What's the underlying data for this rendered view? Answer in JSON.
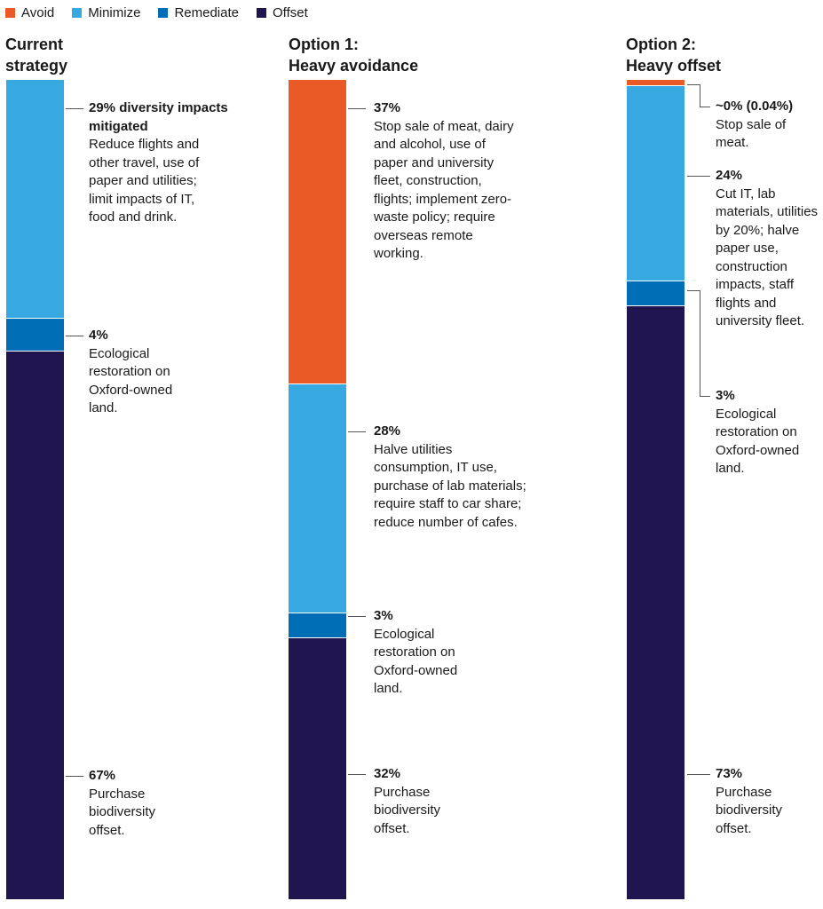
{
  "legend": [
    {
      "name": "Avoid",
      "color": "#ea5a27"
    },
    {
      "name": "Minimize",
      "color": "#38a8e0"
    },
    {
      "name": "Remediate",
      "color": "#006eb7"
    },
    {
      "name": "Offset",
      "color": "#20154f"
    }
  ],
  "chart_data": {
    "type": "bar",
    "stacked": true,
    "orientation": "vertical",
    "unit": "% of biodiversity impact",
    "categories": [
      "Current strategy",
      "Option 1: Heavy avoidance",
      "Option 2: Heavy offset"
    ],
    "series": [
      {
        "name": "Avoid",
        "color": "#ea5a27",
        "values": [
          0,
          37,
          0.04
        ]
      },
      {
        "name": "Minimize",
        "color": "#38a8e0",
        "values": [
          29,
          28,
          24
        ]
      },
      {
        "name": "Remediate",
        "color": "#006eb7",
        "values": [
          4,
          3,
          3
        ]
      },
      {
        "name": "Offset",
        "color": "#20154f",
        "values": [
          67,
          32,
          73
        ]
      }
    ],
    "columns": [
      {
        "title_line1": "Current",
        "title_line2": "strategy",
        "annotations": [
          {
            "series": "Minimize",
            "pct": "29% diversity impacts mitigated",
            "text": "Reduce flights and other travel, use of paper and utilities; limit impacts of IT, food and drink."
          },
          {
            "series": "Remediate",
            "pct": "4%",
            "text": "Ecological restoration on Oxford-owned land."
          },
          {
            "series": "Offset",
            "pct": "67%",
            "text": "Purchase biodiversity offset."
          }
        ]
      },
      {
        "title_line1": "Option 1:",
        "title_line2": "Heavy avoidance",
        "annotations": [
          {
            "series": "Avoid",
            "pct": "37%",
            "text": "Stop sale of meat, dairy and alcohol, use of paper and university fleet, construction, flights; implement zero-waste policy; require overseas remote working."
          },
          {
            "series": "Minimize",
            "pct": "28%",
            "text": "Halve utilities consumption, IT use, purchase of lab materials; require staff to car share; reduce number of cafes."
          },
          {
            "series": "Remediate",
            "pct": "3%",
            "text": "Ecological restoration on Oxford-owned land."
          },
          {
            "series": "Offset",
            "pct": "32%",
            "text": "Purchase biodiversity offset."
          }
        ]
      },
      {
        "title_line1": "Option 2:",
        "title_line2": "Heavy offset",
        "annotations": [
          {
            "series": "Avoid",
            "pct": "~0% (0.04%)",
            "text": "Stop sale of meat."
          },
          {
            "series": "Minimize",
            "pct": "24%",
            "text": "Cut IT, lab materials, utilities by 20%; halve paper use, construction impacts, staff flights and university fleet."
          },
          {
            "series": "Remediate",
            "pct": "3%",
            "text": "Ecological restoration on Oxford-owned land."
          },
          {
            "series": "Offset",
            "pct": "73%",
            "text": "Purchase biodiversity offset."
          }
        ]
      }
    ]
  }
}
